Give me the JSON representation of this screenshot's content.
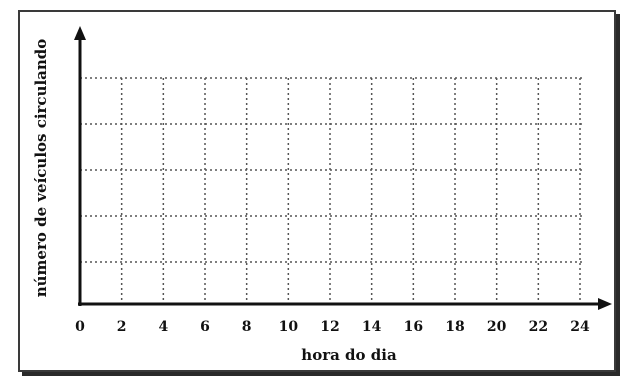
{
  "chart_data": {
    "type": "line",
    "title": "",
    "xlabel": "hora do dia",
    "ylabel": "número de veículos circulando",
    "x_ticks": [
      "0",
      "2",
      "4",
      "6",
      "8",
      "10",
      "12",
      "14",
      "16",
      "18",
      "20",
      "22",
      "24"
    ],
    "xlim": [
      0,
      24
    ],
    "grid": true,
    "series": []
  },
  "colors": {
    "axis": "#111111",
    "grid": "#555555",
    "frame": "#3a3a3a"
  }
}
